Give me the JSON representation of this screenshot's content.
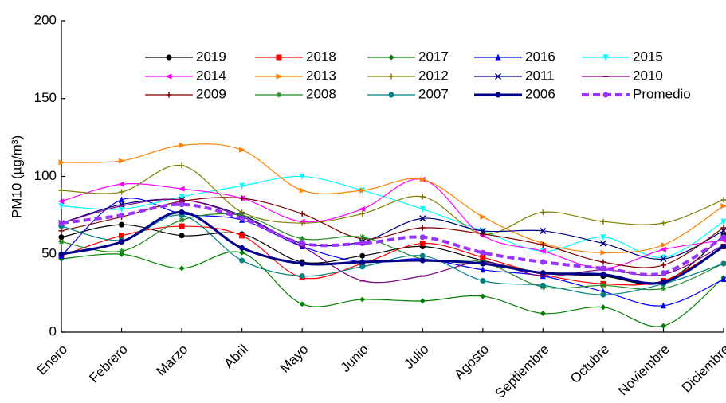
{
  "chart_data": {
    "type": "line",
    "y_label": "PM10 (µg/m³)",
    "categories": [
      "Enero",
      "Febrero",
      "Marzo",
      "Abril",
      "Mayo",
      "Junio",
      "Julio",
      "Agosto",
      "Septiembre",
      "Octubre",
      "Noviembre",
      "Diciembre"
    ],
    "ylim": [
      0,
      200
    ],
    "yticks": [
      0,
      50,
      100,
      150,
      200
    ],
    "smooth": true,
    "series": [
      {
        "name": "2019",
        "color": "#000000",
        "marker": "circle",
        "values": [
          61,
          69,
          62,
          63,
          45,
          49,
          55,
          46,
          38,
          36,
          32,
          62
        ]
      },
      {
        "name": "2018",
        "color": "#ff0000",
        "marker": "square",
        "values": [
          49,
          62,
          68,
          62,
          35,
          44,
          57,
          48,
          37,
          31,
          33,
          55
        ]
      },
      {
        "name": "2017",
        "color": "#008000",
        "marker": "diamond",
        "values": [
          47,
          50,
          41,
          51,
          18,
          21,
          20,
          23,
          12,
          16,
          4,
          35
        ]
      },
      {
        "name": "2016",
        "color": "#0000ff",
        "marker": "triangle-up",
        "values": [
          49,
          85,
          76,
          72,
          55,
          45,
          47,
          40,
          36,
          26,
          17,
          34
        ]
      },
      {
        "name": "2015",
        "color": "#00ffff",
        "marker": "triangle-down",
        "values": [
          81,
          79,
          87,
          94,
          100,
          91,
          79,
          65,
          52,
          61,
          48,
          71
        ]
      },
      {
        "name": "2014",
        "color": "#ff00ff",
        "marker": "triangle-left",
        "values": [
          84,
          95,
          92,
          86,
          71,
          79,
          98,
          62,
          52,
          41,
          53,
          59
        ]
      },
      {
        "name": "2013",
        "color": "#ff8000",
        "marker": "triangle-right",
        "values": [
          109,
          110,
          120,
          117,
          91,
          91,
          98,
          74,
          57,
          51,
          56,
          81
        ]
      },
      {
        "name": "2012",
        "color": "#808000",
        "marker": "plus",
        "values": [
          91,
          90,
          107,
          77,
          70,
          76,
          87,
          63,
          77,
          71,
          70,
          85
        ]
      },
      {
        "name": "2011",
        "color": "#000080",
        "marker": "x",
        "values": [
          70,
          82,
          85,
          75,
          57,
          58,
          73,
          65,
          65,
          57,
          47,
          65
        ]
      },
      {
        "name": "2010",
        "color": "#800080",
        "marker": "dash",
        "values": [
          70,
          81,
          85,
          74,
          55,
          33,
          36,
          45,
          36,
          40,
          37,
          56
        ]
      },
      {
        "name": "2009",
        "color": "#800000",
        "marker": "plus",
        "values": [
          65,
          74,
          84,
          86,
          76,
          60,
          67,
          63,
          56,
          45,
          43,
          67
        ]
      },
      {
        "name": "2008",
        "color": "#228b22",
        "marker": "star",
        "values": [
          58,
          52,
          72,
          75,
          60,
          61,
          47,
          45,
          29,
          30,
          28,
          44
        ]
      },
      {
        "name": "2007",
        "color": "#008080",
        "marker": "circle",
        "values": [
          68,
          59,
          75,
          46,
          36,
          42,
          49,
          33,
          30,
          24,
          31,
          44
        ]
      },
      {
        "name": "2006",
        "color": "#00008b",
        "marker": "circle",
        "line_width": 3,
        "values": [
          50,
          58,
          77,
          54,
          44,
          45,
          46,
          44,
          38,
          37,
          32,
          55
        ]
      },
      {
        "name": "Promedio",
        "color": "#9933ff",
        "marker": "circle",
        "line_width": 4,
        "dashed": true,
        "values": [
          70,
          75,
          82,
          73,
          57,
          57,
          61,
          51,
          45,
          41,
          38,
          61
        ]
      }
    ]
  }
}
